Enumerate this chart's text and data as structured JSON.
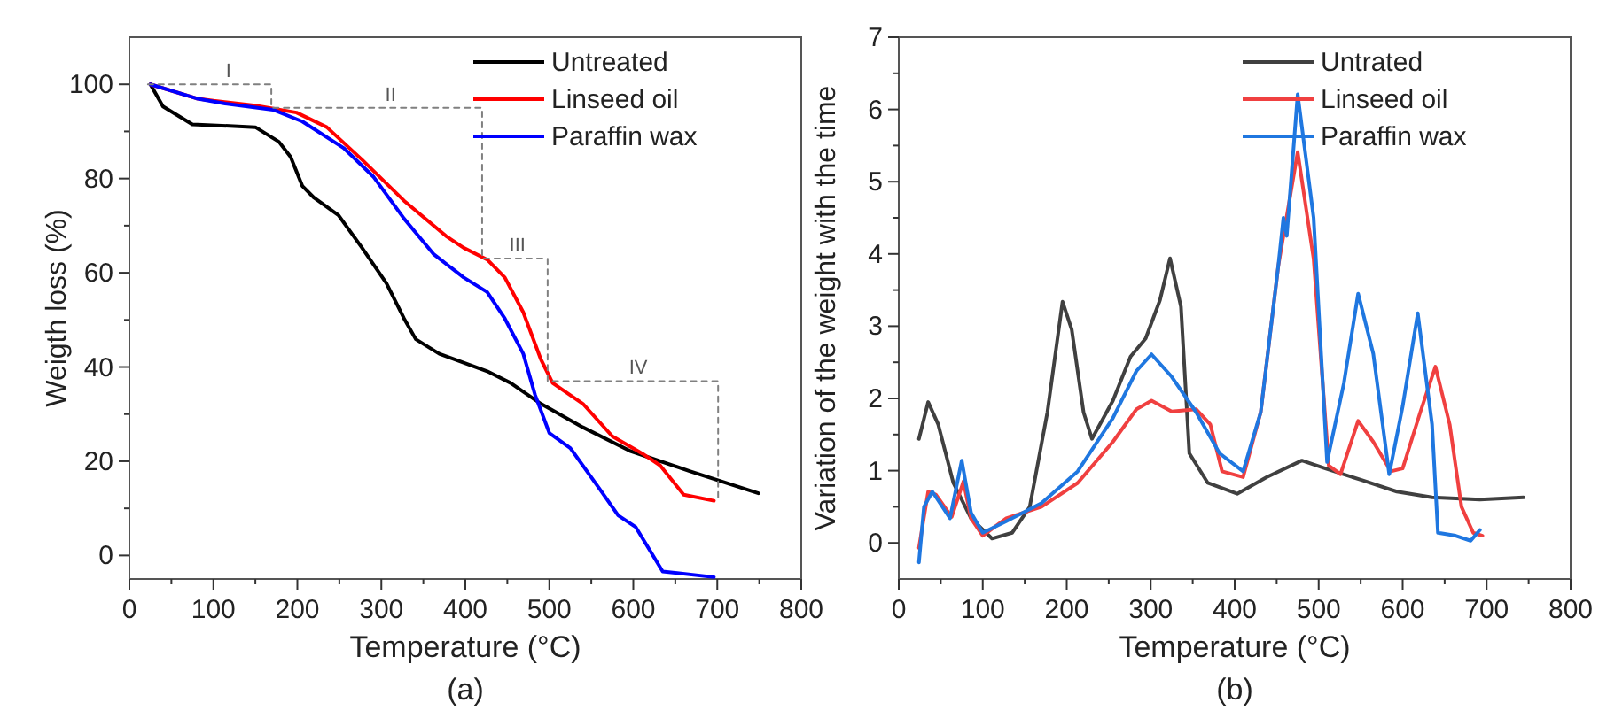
{
  "chart_data": [
    {
      "type": "line",
      "xlabel": "Temperature (°C)",
      "ylabel": "Weigth loss (%)",
      "xlim": [
        0,
        800
      ],
      "ylim": [
        -5,
        110
      ],
      "xticks": [
        0,
        100,
        200,
        300,
        400,
        500,
        600,
        700,
        800
      ],
      "yticks": [
        0,
        20,
        40,
        60,
        80,
        100
      ],
      "legend": "top right",
      "grid": false,
      "marker": "none",
      "annotations": [
        {
          "text": "I",
          "x": 118,
          "y": 100
        },
        {
          "text": "II",
          "x": 311,
          "y": 95
        },
        {
          "text": "III",
          "x": 462,
          "y": 63
        },
        {
          "text": "IV",
          "x": 606,
          "y": 37
        },
        "(a)"
      ],
      "series": [
        {
          "name": "Untreated",
          "color": "#000000",
          "x": [
            25,
            40,
            75,
            150,
            178,
            192,
            206,
            220,
            249,
            277,
            306,
            327,
            341,
            369,
            426,
            454,
            490,
            540,
            596,
            667,
            749
          ],
          "values": [
            100,
            95.3,
            91.5,
            90.9,
            87.8,
            84.6,
            78.4,
            75.9,
            72.2,
            65.3,
            57.8,
            50.3,
            45.9,
            42.8,
            39.1,
            36.6,
            32.2,
            27.2,
            22.2,
            17.9,
            13.2
          ]
        },
        {
          "name": "Linseed oil",
          "color": "#ff0000",
          "x": [
            25,
            80,
            100,
            150,
            199,
            235,
            277,
            327,
            377,
            398,
            426,
            447,
            469,
            490,
            504,
            540,
            575,
            611,
            632,
            660,
            696
          ],
          "values": [
            100,
            97,
            96.5,
            95.5,
            94,
            90.9,
            84,
            75.3,
            67.8,
            65.3,
            62.8,
            59,
            51.6,
            41.6,
            36.6,
            32.2,
            25.3,
            21.6,
            19.1,
            12.9,
            11.6
          ]
        },
        {
          "name": "Paraffin wax",
          "color": "#0000ff",
          "x": [
            25,
            80,
            114,
            171,
            206,
            255,
            291,
            327,
            362,
            398,
            426,
            447,
            469,
            483,
            500,
            525,
            560,
            582,
            603,
            635,
            696
          ],
          "values": [
            100,
            97,
            95.9,
            94.6,
            92.1,
            86.5,
            80.3,
            71.5,
            64,
            59,
            55.9,
            50.3,
            42.8,
            34.1,
            26,
            22.8,
            14.1,
            8.5,
            6,
            -3.4,
            -4.6
          ]
        },
        {
          "color": "#808080",
          "line_style": "dashed",
          "x": [
            22,
            169,
            169,
            420,
            420,
            498,
            498,
            701,
            701
          ],
          "values": [
            100,
            100,
            95,
            95,
            63,
            63,
            37,
            37,
            11.6
          ]
        }
      ]
    },
    {
      "type": "line",
      "xlabel": "Temperature (°C)",
      "ylabel": "Variation of the weight with the time",
      "xlim": [
        0,
        800
      ],
      "ylim": [
        -0.5,
        7
      ],
      "xticks": [
        0,
        100,
        200,
        300,
        400,
        500,
        600,
        700,
        800
      ],
      "yticks": [
        0,
        1,
        2,
        3,
        4,
        5,
        6,
        7
      ],
      "legend": "top right",
      "grid": false,
      "marker": "none",
      "annotations": [
        "(b)"
      ],
      "series": [
        {
          "name": "Untrated",
          "color": "#404040",
          "x": [
            24,
            35,
            47,
            65,
            86,
            111,
            135,
            156,
            177,
            195,
            206,
            220,
            230,
            255,
            276,
            294,
            311,
            323,
            336,
            346,
            368,
            403,
            438,
            480,
            508,
            551,
            593,
            635,
            692,
            744
          ],
          "values": [
            1.44,
            1.95,
            1.64,
            0.83,
            0.34,
            0.06,
            0.14,
            0.5,
            1.81,
            3.34,
            2.95,
            1.81,
            1.44,
            1.97,
            2.58,
            2.83,
            3.36,
            3.94,
            3.27,
            1.24,
            0.83,
            0.68,
            0.91,
            1.14,
            1.03,
            0.87,
            0.71,
            0.63,
            0.6,
            0.63
          ]
        },
        {
          "name": "Linseed oil",
          "color": "#f04040",
          "x": [
            24,
            35,
            44,
            63,
            77,
            86,
            100,
            128,
            170,
            213,
            255,
            283,
            301,
            325,
            354,
            371,
            385,
            410,
            431,
            452,
            475,
            494,
            512,
            526,
            547,
            565,
            586,
            600,
            621,
            639,
            656,
            670,
            684,
            695
          ],
          "values": [
            -0.07,
            0.71,
            0.67,
            0.36,
            0.85,
            0.34,
            0.1,
            0.34,
            0.5,
            0.83,
            1.4,
            1.85,
            1.97,
            1.82,
            1.85,
            1.64,
            0.99,
            0.91,
            1.81,
            3.84,
            5.41,
            3.93,
            1.07,
            0.95,
            1.69,
            1.4,
            0.99,
            1.03,
            1.81,
            2.44,
            1.64,
            0.5,
            0.14,
            0.1
          ]
        },
        {
          "name": "Paraffin wax",
          "color": "#1f77e0",
          "x": [
            24,
            30,
            40,
            61,
            75,
            86,
            100,
            128,
            170,
            213,
            255,
            283,
            301,
            325,
            354,
            382,
            410,
            431,
            452,
            458,
            462,
            475,
            494,
            510,
            530,
            547,
            565,
            584,
            600,
            618,
            635,
            642,
            663,
            681,
            692
          ],
          "values": [
            -0.27,
            0.5,
            0.71,
            0.34,
            1.14,
            0.42,
            0.14,
            0.3,
            0.55,
            0.99,
            1.73,
            2.38,
            2.61,
            2.3,
            1.81,
            1.24,
            0.99,
            1.81,
            3.84,
            4.5,
            4.25,
            6.21,
            4.5,
            1.12,
            2.21,
            3.45,
            2.62,
            0.95,
            1.89,
            3.18,
            1.64,
            0.14,
            0.1,
            0.03,
            0.18
          ]
        }
      ]
    }
  ]
}
